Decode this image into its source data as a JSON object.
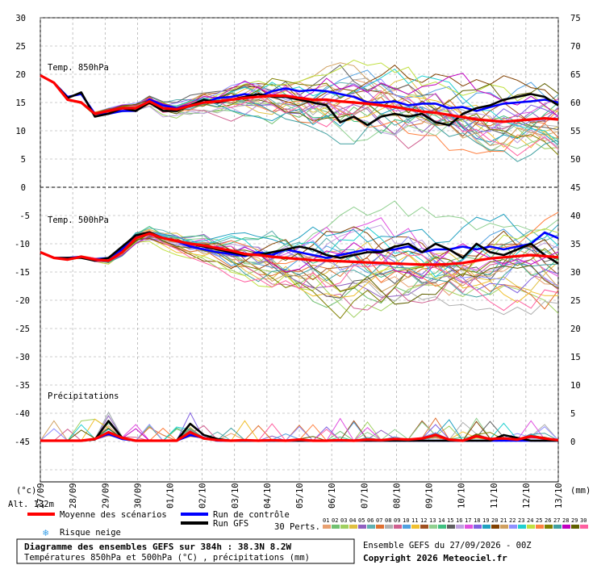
{
  "chart_data": {
    "type": "line",
    "panels": [
      {
        "label": "Temp. 850hPa",
        "left_axis_ticks": [
          "30",
          "25",
          "20",
          "15",
          "10",
          "5",
          "0"
        ],
        "right_axis_ticks": [
          "75",
          "70",
          "65",
          "60",
          "55",
          "50",
          "45"
        ]
      },
      {
        "label": "Temp. 500hPa",
        "left_axis_ticks": [
          "-5",
          "-10",
          "-15",
          "-20",
          "-25",
          "-30",
          "-35",
          "-40",
          "-45"
        ],
        "right_axis_ticks": [
          "40",
          "35",
          "30",
          "25",
          "20",
          "15",
          "10",
          "5",
          "0"
        ]
      },
      {
        "label": "Précipitations"
      }
    ],
    "x_dates": [
      "27/09",
      "28/09",
      "29/09",
      "30/09",
      "01/10",
      "02/10",
      "03/10",
      "04/10",
      "05/10",
      "06/10",
      "07/10",
      "08/10",
      "09/10",
      "10/10",
      "11/10",
      "12/10",
      "13/10"
    ],
    "left_unit": "(°c)",
    "right_unit": "(mm)",
    "altitude": "Alt. 132m",
    "series": [
      {
        "name": "Moyenne des scénarios",
        "color": "#ff0000",
        "t850": [
          19.8,
          18.5,
          15.5,
          15.0,
          13.0,
          13.5,
          14.0,
          14.0,
          15.2,
          14.0,
          13.8,
          14.4,
          15.0,
          15.2,
          15.5,
          15.8,
          16.0,
          16.2,
          16.2,
          15.8,
          15.5,
          15.5,
          15.2,
          15.0,
          14.8,
          14.5,
          14.2,
          13.8,
          13.4,
          13.2,
          12.8,
          12.4,
          12.0,
          11.8,
          11.6,
          11.8,
          12.0,
          12.2,
          12.0
        ],
        "t500": [
          -11.5,
          -12.5,
          -12.8,
          -12.3,
          -12.8,
          -13.0,
          -11.5,
          -9.0,
          -8.2,
          -9.0,
          -9.5,
          -10.0,
          -10.3,
          -10.8,
          -11.2,
          -11.8,
          -12.0,
          -12.3,
          -12.5,
          -12.7,
          -12.9,
          -13.0,
          -13.1,
          -13.2,
          -13.3,
          -13.4,
          -13.5,
          -13.6,
          -13.7,
          -13.7,
          -13.6,
          -13.4,
          -13.0,
          -12.6,
          -12.4,
          -12.2,
          -12.0,
          -12.2,
          -12.4
        ],
        "precip": [
          0,
          0,
          0,
          0,
          0.3,
          1.5,
          0.5,
          0,
          0,
          0,
          0,
          1.5,
          0.4,
          0.1,
          0,
          0.1,
          0,
          0.1,
          0,
          0.2,
          0,
          0,
          0.1,
          0,
          0.2,
          0.1,
          0.3,
          0.2,
          0.4,
          1.0,
          0.2,
          0,
          0.8,
          0.3,
          0.4,
          0.2,
          0.8,
          0.4,
          0.1
        ]
      },
      {
        "name": "Run de contrôle",
        "color": "#0000ff",
        "t850": [
          19.8,
          18.5,
          16.0,
          16.5,
          13.0,
          13.0,
          13.5,
          13.5,
          15.5,
          14.5,
          14.0,
          14.5,
          15.0,
          15.8,
          16.0,
          16.5,
          16.0,
          17.0,
          17.5,
          17.0,
          17.2,
          17.0,
          16.5,
          16.0,
          15.0,
          15.0,
          15.2,
          14.5,
          14.8,
          14.8,
          14.0,
          14.2,
          13.5,
          14.2,
          14.8,
          15.0,
          15.2,
          15.5,
          15.0
        ],
        "t500": [
          -11.5,
          -12.5,
          -12.5,
          -12.3,
          -12.8,
          -12.5,
          -11.0,
          -8.5,
          -8.2,
          -9.0,
          -9.5,
          -10.5,
          -11.0,
          -11.5,
          -11.8,
          -12.2,
          -11.5,
          -12.0,
          -11.0,
          -11.5,
          -12.0,
          -12.5,
          -12.0,
          -11.5,
          -11.0,
          -11.3,
          -11.0,
          -10.5,
          -11.5,
          -11.0,
          -11.0,
          -10.5,
          -11.0,
          -10.5,
          -11.0,
          -10.5,
          -10.0,
          -8.0,
          -9.0
        ],
        "precip": [
          0,
          0,
          0,
          0,
          0.3,
          1.2,
          0.3,
          0,
          0,
          0,
          0,
          1.0,
          0.5,
          0,
          0,
          0,
          0,
          0,
          0,
          0,
          0,
          0,
          0,
          0,
          0,
          0,
          0,
          0,
          0,
          0,
          0,
          0,
          0,
          0,
          0,
          0,
          0,
          0,
          0
        ]
      },
      {
        "name": "Run GFS",
        "color": "#000000",
        "t850": [
          19.8,
          18.5,
          15.8,
          16.8,
          12.5,
          13.0,
          14.0,
          13.5,
          15.0,
          13.5,
          13.5,
          14.5,
          15.5,
          15.0,
          15.5,
          16.0,
          16.5,
          16.0,
          16.0,
          15.5,
          15.0,
          14.5,
          11.5,
          12.5,
          11.0,
          12.5,
          13.0,
          12.5,
          13.0,
          11.5,
          11.0,
          13.0,
          14.0,
          14.5,
          15.5,
          16.0,
          16.5,
          16.0,
          14.5
        ],
        "t500": [
          -11.5,
          -12.5,
          -12.5,
          -12.5,
          -13.0,
          -12.5,
          -10.5,
          -8.5,
          -8.0,
          -9.0,
          -9.5,
          -10.0,
          -10.5,
          -11.0,
          -11.5,
          -12.0,
          -12.0,
          -11.5,
          -11.0,
          -10.5,
          -11.0,
          -12.0,
          -12.5,
          -12.0,
          -11.5,
          -11.5,
          -10.5,
          -10.0,
          -11.5,
          -10.0,
          -11.0,
          -12.5,
          -10.0,
          -11.5,
          -12.0,
          -11.0,
          -10.0,
          -12.0,
          -13.5
        ],
        "precip": [
          0,
          0,
          0,
          0,
          0.2,
          3.5,
          0.5,
          0,
          0,
          0,
          0,
          3.0,
          1.0,
          0.3,
          0,
          0,
          0,
          0,
          0,
          0,
          0,
          0,
          0,
          0,
          0,
          0,
          0,
          0,
          0,
          0,
          0,
          0,
          0,
          0,
          1.0,
          0.5,
          0,
          0,
          0
        ]
      }
    ],
    "legend": {
      "moyenne": "Moyenne des scénarios",
      "controle": "Run de contrôle",
      "gfs": "Run GFS",
      "neige": "Risque neige",
      "perts": "30 Perts."
    },
    "perturbation_labels": [
      "01",
      "02",
      "03",
      "04",
      "05",
      "06",
      "07",
      "08",
      "09",
      "10",
      "11",
      "12",
      "13",
      "14",
      "15",
      "16",
      "17",
      "18",
      "19",
      "20",
      "21",
      "22",
      "23",
      "24",
      "25",
      "26",
      "27",
      "28",
      "29",
      "30"
    ],
    "perturbation_colors": [
      "#e8a070",
      "#70c070",
      "#a0d060",
      "#e0c040",
      "#9060c0",
      "#60b0b0",
      "#e07030",
      "#b0b0b0",
      "#d06090",
      "#50a0e0",
      "#f0c030",
      "#a05020",
      "#90d090",
      "#40c080",
      "#606060",
      "#c0a0e0",
      "#e050e0",
      "#8060e0",
      "#20a0c0",
      "#804000",
      "#d0a060",
      "#9090ff",
      "#20d0d0",
      "#c0e040",
      "#ff8040",
      "#808000",
      "#40a0a0",
      "#c000c0",
      "#606000",
      "#ff60a0"
    ],
    "bottom": {
      "title": "Diagramme des ensembles GEFS sur 384h : 38.3N 8.2W",
      "subtitle": "Températures 850hPa et 500hPa (°C) , précipitations (mm)",
      "run": "Ensemble GEFS du 27/09/2026 - 00Z",
      "copyright": "Copyright 2026 Meteociel.fr"
    }
  }
}
